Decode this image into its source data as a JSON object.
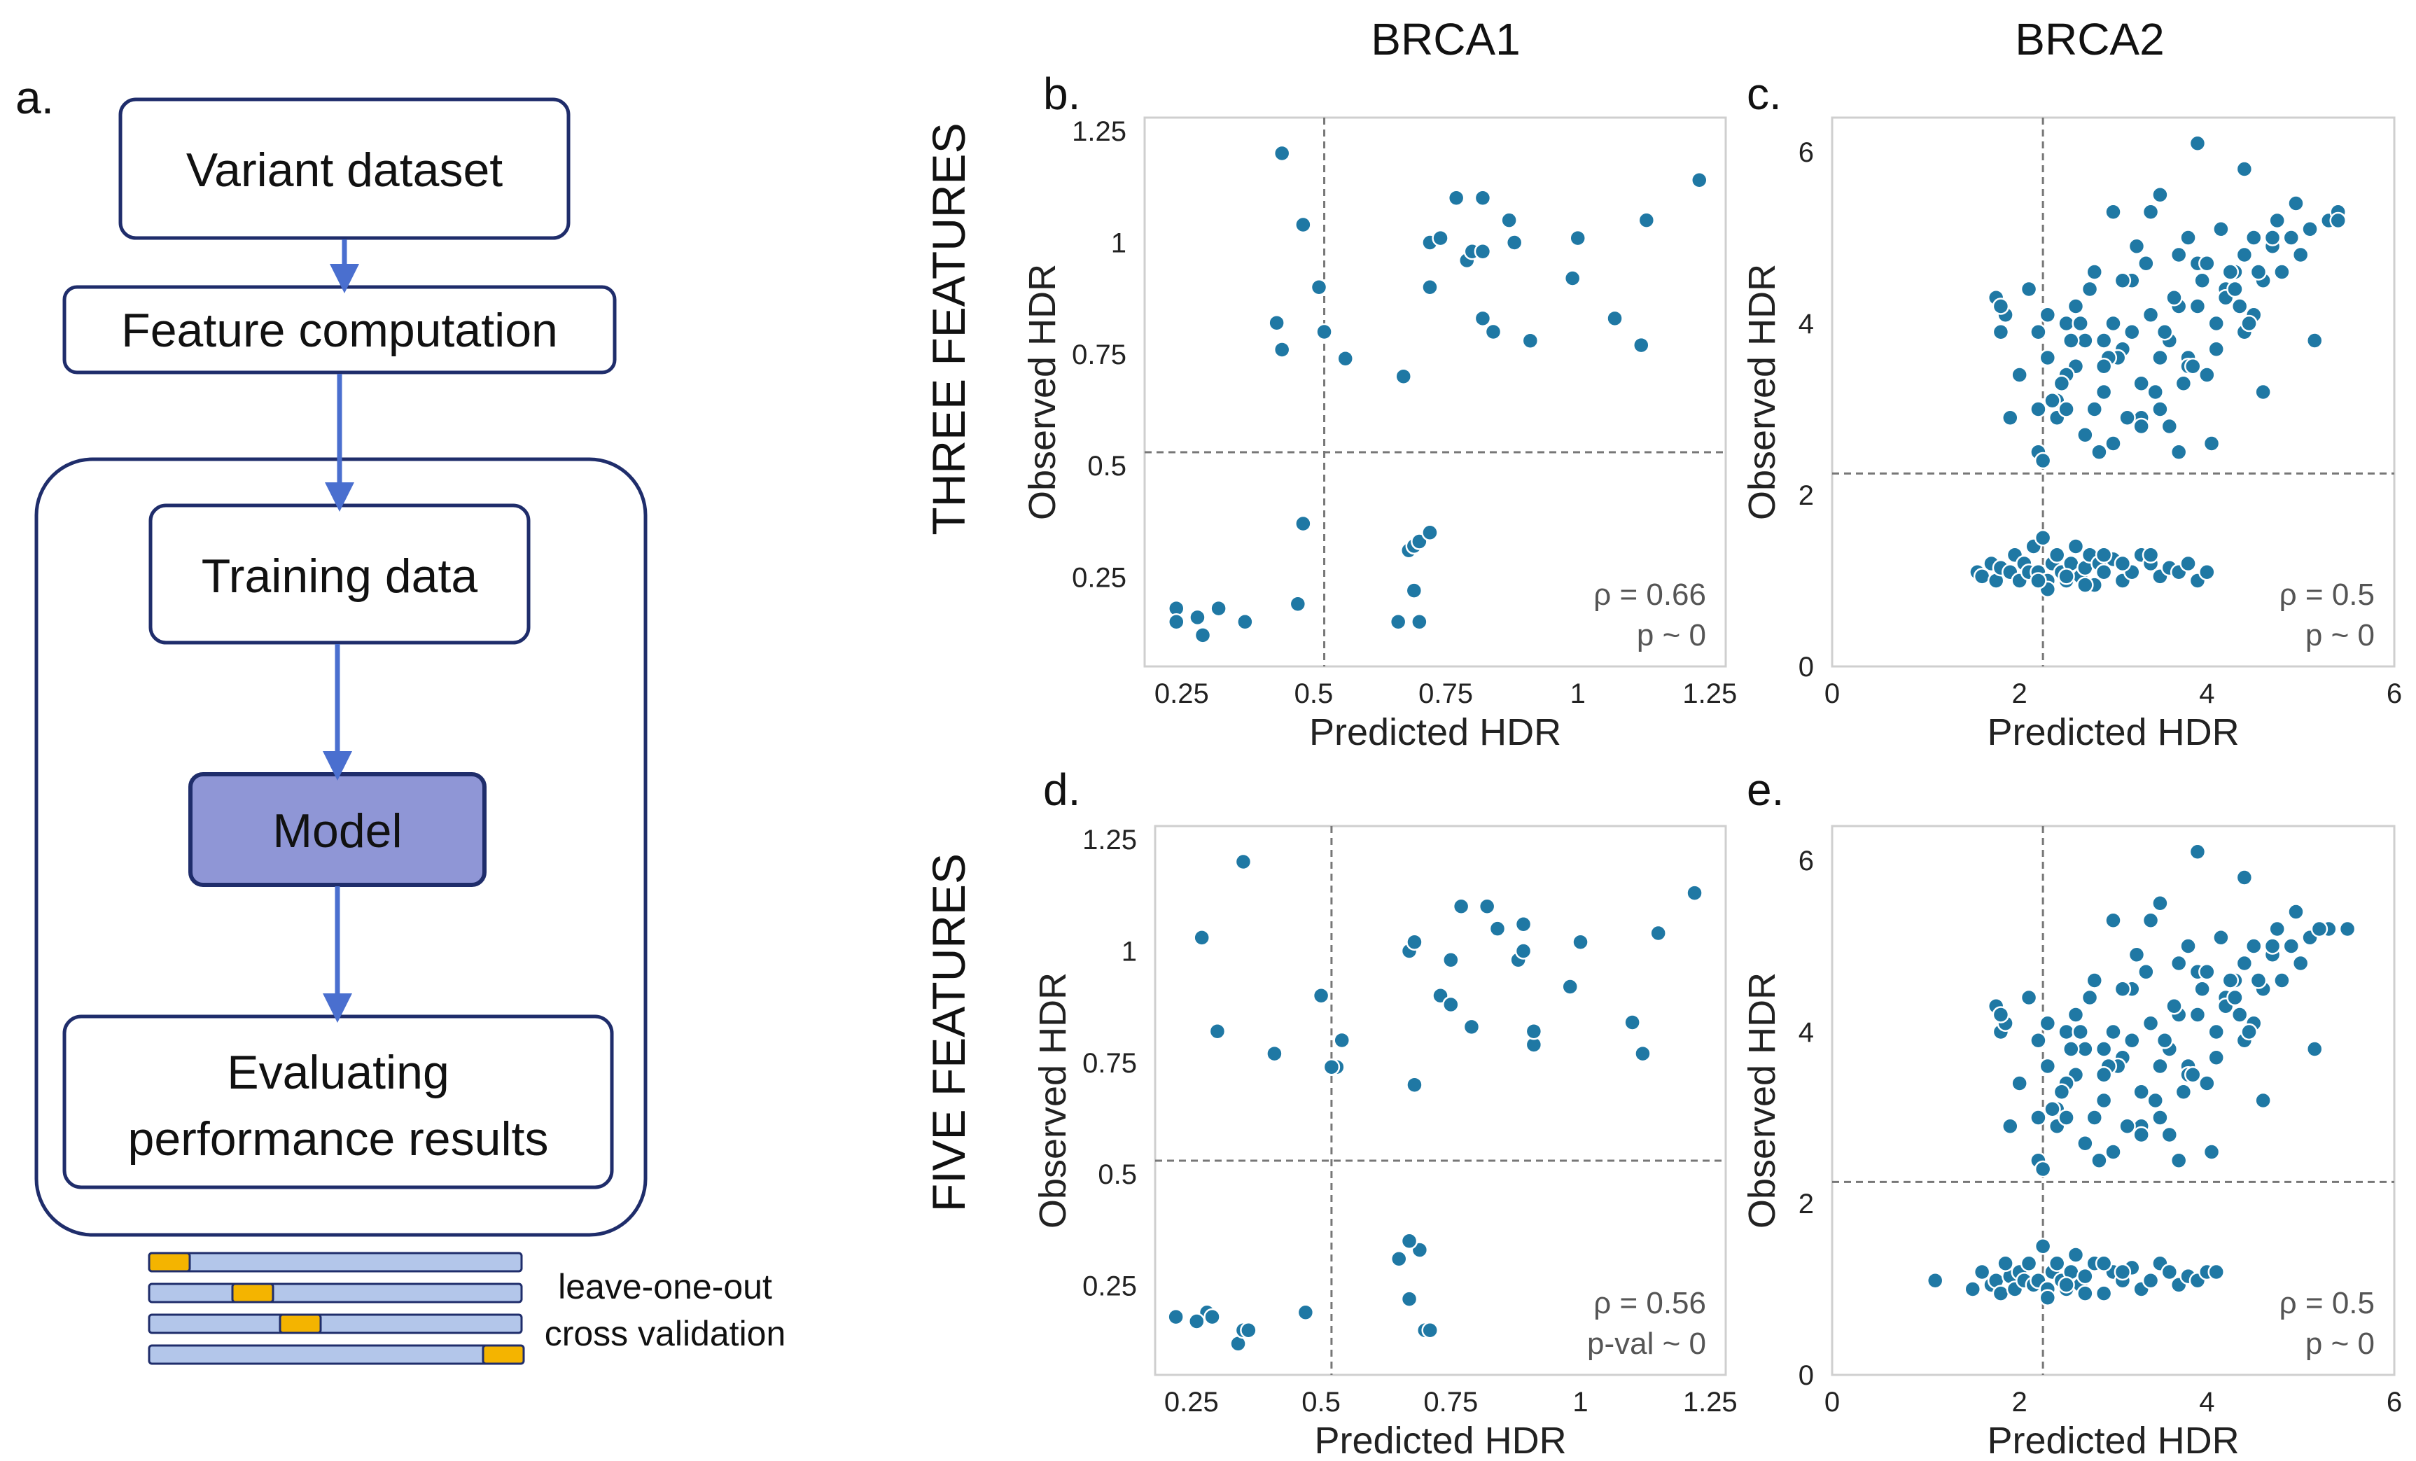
{
  "flowchart": {
    "panel_label": "a.",
    "steps": {
      "variant_dataset": "Variant dataset",
      "feature_computation": "Feature computation",
      "training_data": "Training data",
      "model": "Model",
      "evaluating_line1": "Evaluating",
      "evaluating_line2": "performance results"
    },
    "cv_caption_line1": "leave-one-out",
    "cv_caption_line2": "cross validation",
    "colors": {
      "border": "#1f2d6b",
      "arrow": "#4a6fcf",
      "model_fill": "#8f96d6",
      "cv_bar": "#b3c6ea",
      "cv_highlight": "#f4b400"
    }
  },
  "headers": {
    "col1": "BRCA1",
    "col2": "BRCA2",
    "row1": "THREE FEATURES",
    "row2": "FIVE FEATURES"
  },
  "chart_data": [
    {
      "id": "b",
      "label": "b.",
      "type": "scatter",
      "title": "",
      "xlabel": "Predicted HDR",
      "ylabel": "Observed HDR",
      "xlim": [
        0.18,
        1.28
      ],
      "ylim": [
        0.05,
        1.28
      ],
      "xticks": [
        0.25,
        0.5,
        0.75,
        1,
        1.25
      ],
      "xtick_labels": [
        "0.25",
        "0.5",
        "0.75",
        "1",
        "1.25"
      ],
      "yticks": [
        0.25,
        0.5,
        0.75,
        1,
        1.25
      ],
      "ytick_labels": [
        "0.25",
        "0.5",
        "0.75",
        "1",
        "1.25"
      ],
      "vline": 0.52,
      "hline": 0.53,
      "stat_rho": "ρ = 0.66",
      "stat_p": "p ~ 0",
      "color": "#1f78a4",
      "x": [
        0.44,
        0.48,
        0.51,
        0.52,
        0.43,
        0.44,
        0.56,
        0.48,
        0.24,
        0.24,
        0.28,
        0.29,
        0.32,
        0.37,
        0.47,
        0.66,
        0.68,
        0.69,
        0.7,
        0.72,
        0.69,
        0.7,
        0.67,
        0.72,
        0.74,
        0.77,
        0.79,
        0.8,
        0.82,
        0.82,
        0.84,
        0.87,
        0.88,
        0.91,
        0.72,
        0.82,
        0.99,
        1.0,
        1.07,
        1.12,
        1.13,
        1.23
      ],
      "y": [
        1.2,
        1.04,
        0.9,
        0.8,
        0.82,
        0.76,
        0.74,
        0.37,
        0.18,
        0.15,
        0.16,
        0.12,
        0.18,
        0.15,
        0.19,
        0.15,
        0.31,
        0.32,
        0.33,
        0.35,
        0.22,
        0.15,
        0.7,
        1.0,
        1.01,
        1.1,
        0.96,
        0.98,
        0.98,
        1.1,
        0.8,
        1.05,
        1.0,
        0.78,
        0.9,
        0.83,
        0.92,
        1.01,
        0.83,
        0.77,
        1.05,
        1.14
      ]
    },
    {
      "id": "c",
      "label": "c.",
      "type": "scatter",
      "title": "",
      "xlabel": "Predicted HDR",
      "ylabel": "Observed HDR",
      "xlim": [
        0,
        6
      ],
      "ylim": [
        0,
        6.4
      ],
      "xticks": [
        0,
        2,
        4,
        6
      ],
      "xtick_labels": [
        "0",
        "2",
        "4",
        "6"
      ],
      "yticks": [
        0,
        2,
        4,
        6
      ],
      "ytick_labels": [
        "0",
        "2",
        "4",
        "6"
      ],
      "vline": 2.25,
      "hline": 2.25,
      "stat_rho": "ρ = 0.5",
      "stat_p": "p ~ 0",
      "color": "#1f78a4",
      "x": [
        1.55,
        1.6,
        1.7,
        1.75,
        1.8,
        1.9,
        1.95,
        2.0,
        2.05,
        2.1,
        2.15,
        2.2,
        2.25,
        2.3,
        2.35,
        2.4,
        2.45,
        2.5,
        2.55,
        2.6,
        2.65,
        2.7,
        2.75,
        2.8,
        2.85,
        2.9,
        3.0,
        3.1,
        3.2,
        3.3,
        3.4,
        3.5,
        3.6,
        3.7,
        3.8,
        3.9,
        4.0,
        2.3,
        2.5,
        2.7,
        2.9,
        3.1,
        2.2,
        2.6,
        3.4,
        1.75,
        1.8,
        1.85,
        1.9,
        2.0,
        2.1,
        2.2,
        2.3,
        2.4,
        2.5,
        2.6,
        2.7,
        2.8,
        2.9,
        3.0,
        3.1,
        3.2,
        3.3,
        3.4,
        3.5,
        3.6,
        3.7,
        3.8,
        3.9,
        4.0,
        4.1,
        4.2,
        4.3,
        4.4,
        4.5,
        4.6,
        4.7,
        4.8,
        4.9,
        5.0,
        5.1,
        5.3,
        5.4,
        2.4,
        2.6,
        2.8,
        3.0,
        3.2,
        3.4,
        3.6,
        3.8,
        4.0,
        4.2,
        4.4,
        4.6,
        2.3,
        2.5,
        2.7,
        2.9,
        3.1,
        3.3,
        3.5,
        3.7,
        3.9,
        4.1,
        4.3,
        4.5,
        4.7,
        2.2,
        2.45,
        2.65,
        2.85,
        3.05,
        3.25,
        3.45,
        3.65,
        3.85,
        4.05,
        4.25,
        4.45,
        2.35,
        2.55,
        2.75,
        2.95,
        3.15,
        3.35,
        3.55,
        3.75,
        3.95,
        4.15,
        4.35,
        4.55,
        4.75,
        4.95,
        5.15,
        2.25,
        2.5,
        2.9,
        3.3,
        3.7,
        4.0,
        1.8,
        3.0,
        3.5,
        4.4,
        3.9,
        2.2,
        3.8,
        2.1,
        5.4
      ],
      "y": [
        1.1,
        1.05,
        1.2,
        1.0,
        1.15,
        1.1,
        1.3,
        1.0,
        1.2,
        1.1,
        1.4,
        1.1,
        1.5,
        1.0,
        1.2,
        1.3,
        1.1,
        1.0,
        1.2,
        1.4,
        1.05,
        1.15,
        1.3,
        0.95,
        1.2,
        1.1,
        1.25,
        1.0,
        1.1,
        1.3,
        1.2,
        1.05,
        1.15,
        1.1,
        1.2,
        1.0,
        1.1,
        0.9,
        1.05,
        0.95,
        1.3,
        1.2,
        1.0,
        1.4,
        1.3,
        4.3,
        3.9,
        4.1,
        2.9,
        3.4,
        4.4,
        2.5,
        3.6,
        3.1,
        4.0,
        3.5,
        3.8,
        4.6,
        3.2,
        4.0,
        3.7,
        4.5,
        3.3,
        4.1,
        3.0,
        3.8,
        4.2,
        3.6,
        4.7,
        3.4,
        4.0,
        4.4,
        4.6,
        4.8,
        5.0,
        4.5,
        4.9,
        4.6,
        5.0,
        4.8,
        5.1,
        5.2,
        5.3,
        2.9,
        4.2,
        3.0,
        2.6,
        3.9,
        5.3,
        2.8,
        3.5,
        4.7,
        4.3,
        3.9,
        3.2,
        4.1,
        3.4,
        2.7,
        3.8,
        4.5,
        2.9,
        3.6,
        4.8,
        4.2,
        3.7,
        4.4,
        4.1,
        5.0,
        3.0,
        3.3,
        4.0,
        2.5,
        3.6,
        4.9,
        3.2,
        4.3,
        3.5,
        2.6,
        4.6,
        4.0,
        3.1,
        3.8,
        4.4,
        3.6,
        2.9,
        4.7,
        3.9,
        3.3,
        4.5,
        5.1,
        4.2,
        4.6,
        5.2,
        5.4,
        3.8,
        2.4,
        3.0,
        3.5,
        2.8,
        2.5,
        3.4,
        4.2,
        5.3,
        5.5,
        5.8,
        6.1,
        3.9,
        5.0,
        4.4,
        5.2
      ],
      "y_note": "observed HDR bimodal: ~1 cluster and 2.3-6 cluster"
    },
    {
      "id": "d",
      "label": "d.",
      "type": "scatter",
      "title": "",
      "xlabel": "Predicted HDR",
      "ylabel": "Observed HDR",
      "xlim": [
        0.18,
        1.28
      ],
      "ylim": [
        0.05,
        1.28
      ],
      "xticks": [
        0.25,
        0.5,
        0.75,
        1,
        1.25
      ],
      "xtick_labels": [
        "0.25",
        "0.5",
        "0.75",
        "1",
        "1.25"
      ],
      "yticks": [
        0.25,
        0.5,
        0.75,
        1,
        1.25
      ],
      "ytick_labels": [
        "0.25",
        "0.5",
        "0.75",
        "1",
        "1.25"
      ],
      "vline": 0.52,
      "hline": 0.53,
      "stat_rho": "ρ = 0.56",
      "stat_p": "p-val ~ 0",
      "color": "#1f78a4",
      "x": [
        0.35,
        0.27,
        0.3,
        0.41,
        0.5,
        0.53,
        0.52,
        0.54,
        0.22,
        0.28,
        0.29,
        0.26,
        0.34,
        0.35,
        0.36,
        0.47,
        0.65,
        0.67,
        0.7,
        0.71,
        0.69,
        0.67,
        0.68,
        0.67,
        0.68,
        0.73,
        0.75,
        0.75,
        0.77,
        0.79,
        0.82,
        0.84,
        0.88,
        0.89,
        0.89,
        0.91,
        0.91,
        0.98,
        1.0,
        1.1,
        1.12,
        1.15,
        1.22
      ],
      "y": [
        1.2,
        1.03,
        0.82,
        0.77,
        0.9,
        0.74,
        0.74,
        0.8,
        0.18,
        0.19,
        0.18,
        0.17,
        0.12,
        0.15,
        0.15,
        0.19,
        0.31,
        0.22,
        0.15,
        0.15,
        0.33,
        0.35,
        0.7,
        1.0,
        1.02,
        0.9,
        0.98,
        0.88,
        1.1,
        0.83,
        1.1,
        1.05,
        0.98,
        1.0,
        1.06,
        0.79,
        0.82,
        0.92,
        1.02,
        0.84,
        0.77,
        1.04,
        1.13
      ]
    },
    {
      "id": "e",
      "label": "e.",
      "type": "scatter",
      "title": "",
      "xlabel": "Predicted HDR",
      "ylabel": "Observed HDR",
      "xlim": [
        0,
        6
      ],
      "ylim": [
        0,
        6.4
      ],
      "xticks": [
        0,
        2,
        4,
        6
      ],
      "xtick_labels": [
        "0",
        "2",
        "4",
        "6"
      ],
      "yticks": [
        0,
        2,
        4,
        6
      ],
      "ytick_labels": [
        "0",
        "2",
        "4",
        "6"
      ],
      "vline": 2.25,
      "hline": 2.25,
      "stat_rho": "ρ = 0.5",
      "stat_p": "p ~ 0",
      "color": "#1f78a4",
      "x": [
        1.1,
        1.5,
        1.6,
        1.7,
        1.75,
        1.8,
        1.9,
        1.95,
        2.0,
        2.05,
        2.1,
        2.15,
        2.2,
        2.25,
        2.3,
        2.35,
        2.4,
        2.45,
        2.5,
        2.55,
        2.6,
        2.65,
        2.7,
        2.8,
        2.9,
        3.0,
        3.1,
        3.2,
        3.3,
        3.4,
        3.5,
        3.6,
        3.7,
        3.8,
        3.9,
        4.0,
        4.1,
        2.3,
        2.5,
        2.7,
        2.9,
        3.1,
        1.85,
        1.75,
        1.8,
        1.85,
        1.9,
        2.0,
        2.1,
        2.2,
        2.3,
        2.4,
        2.5,
        2.6,
        2.7,
        2.8,
        2.9,
        3.0,
        3.1,
        3.2,
        3.3,
        3.4,
        3.5,
        3.6,
        3.7,
        3.8,
        3.9,
        4.0,
        4.1,
        4.2,
        4.3,
        4.4,
        4.5,
        4.6,
        4.7,
        4.8,
        4.9,
        5.0,
        5.1,
        5.3,
        5.5,
        2.4,
        2.6,
        2.8,
        3.0,
        3.2,
        3.4,
        3.6,
        3.8,
        4.0,
        4.2,
        4.4,
        4.6,
        2.3,
        2.5,
        2.7,
        2.9,
        3.1,
        3.3,
        3.5,
        3.7,
        3.9,
        4.1,
        4.3,
        4.5,
        4.7,
        2.2,
        2.45,
        2.65,
        2.85,
        3.05,
        3.25,
        3.45,
        3.65,
        3.85,
        4.05,
        4.25,
        4.45,
        2.35,
        2.55,
        2.75,
        2.95,
        3.15,
        3.35,
        3.55,
        3.75,
        3.95,
        4.15,
        4.35,
        4.55,
        4.75,
        4.95,
        5.15,
        2.25,
        2.5,
        2.9,
        3.3,
        3.7,
        4.0,
        1.8,
        3.0,
        3.5,
        4.4,
        3.9,
        2.2,
        3.8,
        2.1,
        5.2
      ],
      "y": [
        1.1,
        1.0,
        1.2,
        1.05,
        1.1,
        0.95,
        1.15,
        1.0,
        1.2,
        1.1,
        1.3,
        1.05,
        1.1,
        1.5,
        1.0,
        1.2,
        1.3,
        1.1,
        1.0,
        1.2,
        1.4,
        1.05,
        1.15,
        1.3,
        0.95,
        1.2,
        1.1,
        1.25,
        1.0,
        1.1,
        1.3,
        1.2,
        1.05,
        1.15,
        1.1,
        1.2,
        1.2,
        0.9,
        1.05,
        0.95,
        1.3,
        1.2,
        1.3,
        4.3,
        4.0,
        4.1,
        2.9,
        3.4,
        4.4,
        2.5,
        3.6,
        3.1,
        4.0,
        3.5,
        3.8,
        4.6,
        3.2,
        4.0,
        3.7,
        4.5,
        3.3,
        4.1,
        3.0,
        3.8,
        4.2,
        3.6,
        4.7,
        3.4,
        4.0,
        4.4,
        4.6,
        4.8,
        5.0,
        4.5,
        4.9,
        4.6,
        5.0,
        4.8,
        5.1,
        5.2,
        5.2,
        2.9,
        4.2,
        3.0,
        2.6,
        3.9,
        5.3,
        2.8,
        3.5,
        4.7,
        4.3,
        3.9,
        3.2,
        4.1,
        3.4,
        2.7,
        3.8,
        4.5,
        2.9,
        3.6,
        4.8,
        4.2,
        3.7,
        4.4,
        4.1,
        5.0,
        3.0,
        3.3,
        4.0,
        2.5,
        3.6,
        4.9,
        3.2,
        4.3,
        3.5,
        2.6,
        4.6,
        4.0,
        3.1,
        3.8,
        4.4,
        3.6,
        2.9,
        4.7,
        3.9,
        3.3,
        4.5,
        5.1,
        4.2,
        4.6,
        5.2,
        5.4,
        3.8,
        2.4,
        3.0,
        3.5,
        2.8,
        2.5,
        3.4,
        4.2,
        5.3,
        5.5,
        5.8,
        6.1,
        3.9,
        5.0,
        4.4,
        5.2
      ],
      "y_note": "observed HDR bimodal: ~1 cluster and 2.3-6 cluster"
    }
  ]
}
